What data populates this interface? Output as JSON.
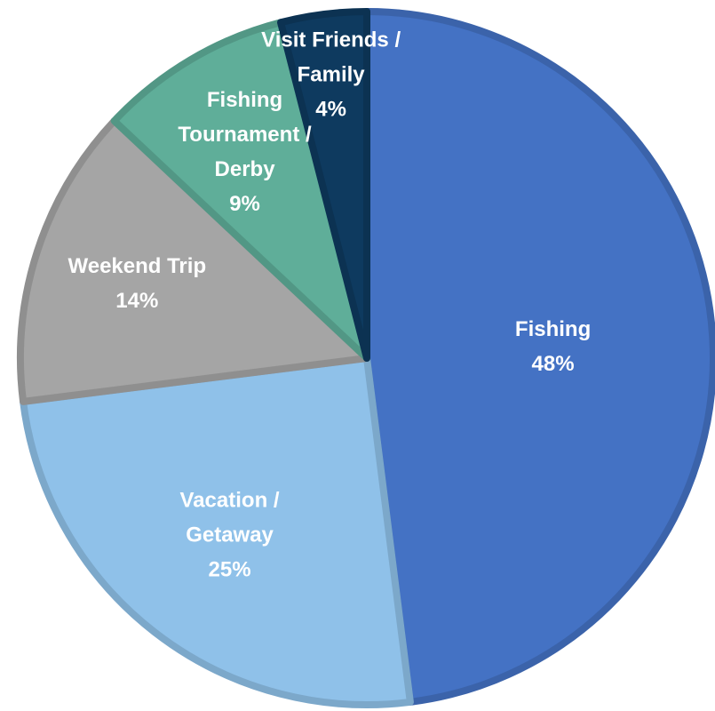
{
  "chart_data": {
    "type": "pie",
    "categories": [
      "Fishing",
      "Vacation / Getaway",
      "Weekend Trip",
      "Fishing Tournament / Derby",
      "Visit Friends / Family"
    ],
    "values": [
      48,
      25,
      14,
      9,
      4
    ],
    "value_labels": [
      "48%",
      "25%",
      "14%",
      "9%",
      "4%"
    ],
    "colors": [
      "#4472c4",
      "#8fc1e9",
      "#a5a5a5",
      "#5fae99",
      "#0e3a5f"
    ]
  }
}
